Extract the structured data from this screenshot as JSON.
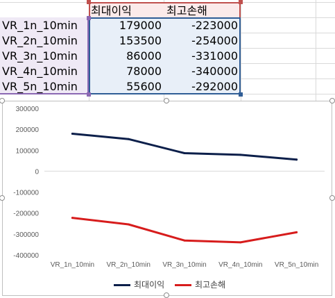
{
  "table": {
    "headers": [
      "최대이익",
      "최고손해"
    ],
    "rows": [
      {
        "label": "VR_1n_10min",
        "max_profit": "179000",
        "max_loss": "-223000"
      },
      {
        "label": "VR_2n_10min",
        "max_profit": "153500",
        "max_loss": "-254000"
      },
      {
        "label": "VR_3n_10min",
        "max_profit": "86000",
        "max_loss": "-331000"
      },
      {
        "label": "VR_4n_10min",
        "max_profit": "78000",
        "max_loss": "-340000"
      },
      {
        "label": "VR_5n_10min",
        "max_profit": "55600",
        "max_loss": "-292000"
      }
    ]
  },
  "colors": {
    "series_profit": "#0c1f4a",
    "series_loss": "#d71c1c",
    "label_selection": "#8b68b3",
    "value_selection": "#2f5d96",
    "header_selection": "#c0504d"
  },
  "chart_data": {
    "type": "line",
    "categories": [
      "VR_1n_10min",
      "VR_2n_10min",
      "VR_3n_10min",
      "VR_4n_10min",
      "VR_5n_10min"
    ],
    "series": [
      {
        "name": "최대이익",
        "values": [
          179000,
          153500,
          86000,
          78000,
          55600
        ]
      },
      {
        "name": "최고손해",
        "values": [
          -223000,
          -254000,
          -331000,
          -340000,
          -292000
        ]
      }
    ],
    "ylim": [
      -400000,
      300000
    ],
    "yticks": [
      "300000",
      "200000",
      "100000",
      "0",
      "-100000",
      "-200000",
      "-300000",
      "-400000"
    ],
    "ytick_values": [
      300000,
      200000,
      100000,
      0,
      -100000,
      -200000,
      -300000,
      -400000
    ],
    "grid": false,
    "legend_position": "bottom"
  }
}
